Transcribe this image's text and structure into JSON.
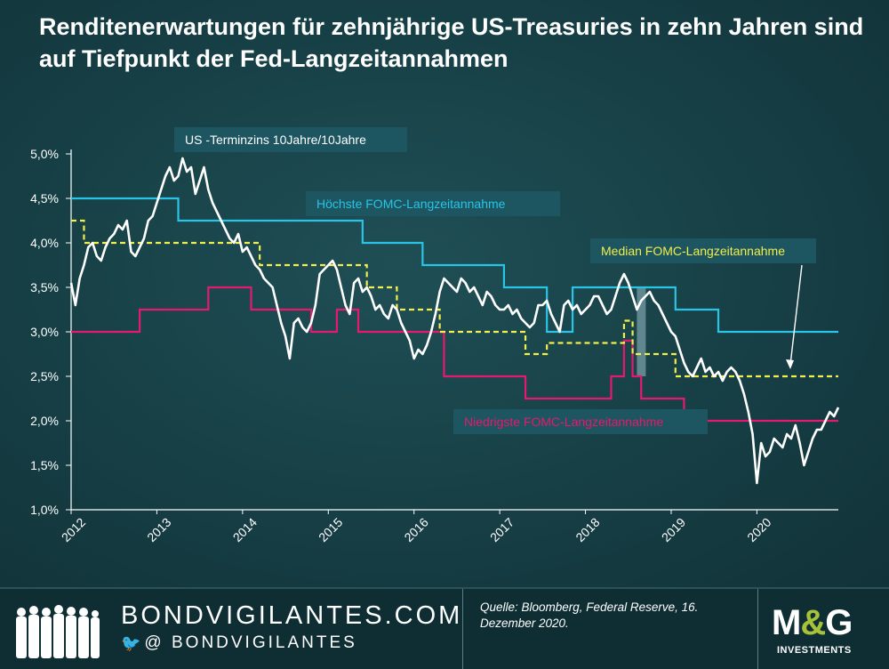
{
  "title": "Renditenerwartungen für zehnjährige US-Treasuries in zehn Jahren sind auf Tiefpunkt der Fed-Langzeitannahmen",
  "footer": {
    "site": "BONDVIGILANTES.COM",
    "social": "@ BONDVIGILANTES",
    "source": "Quelle: Bloomberg, Federal Reserve, 16. Dezember 2020.",
    "logo_main": "M&G",
    "logo_sub": "INVESTMENTS"
  },
  "colors": {
    "forward": "#ffffff",
    "highest": "#29c4e6",
    "median": "#f2ee4a",
    "lowest": "#e5196e",
    "label_box": "#1d5560",
    "accent": "#a6c23a"
  },
  "chart_data": {
    "type": "line",
    "ylim": [
      1.0,
      5.0
    ],
    "xlim": [
      2012.0,
      2020.95
    ],
    "y_ticks": [
      "1,0%",
      "1,5%",
      "2,0%",
      "2,5%",
      "3,0%",
      "3,5%",
      "4,0%",
      "4,5%",
      "5,0%"
    ],
    "y_tick_values": [
      1.0,
      1.5,
      2.0,
      2.5,
      3.0,
      3.5,
      4.0,
      4.5,
      5.0
    ],
    "x_ticks": [
      "2012",
      "2013",
      "2014",
      "2015",
      "2016",
      "2017",
      "2018",
      "2019",
      "2020"
    ],
    "x_tick_values": [
      2012,
      2013,
      2014,
      2015,
      2016,
      2017,
      2018,
      2019,
      2020
    ],
    "annotations": [
      {
        "text": "US -Terminzins 10Jahre/10Jahre",
        "series": "forward"
      },
      {
        "text": "Höchste FOMC-Langzeitannahme",
        "series": "highest"
      },
      {
        "text": "Median FOMC-Langzeitannahme",
        "series": "median"
      },
      {
        "text": "Niedrigste FOMC-Langzeitannahme",
        "series": "lowest"
      }
    ],
    "series": [
      {
        "name": "US -Terminzins 10Jahre/10Jahre",
        "key": "forward",
        "style": "solid",
        "x": [
          2012.0,
          2012.05,
          2012.1,
          2012.15,
          2012.2,
          2012.25,
          2012.3,
          2012.35,
          2012.4,
          2012.45,
          2012.5,
          2012.55,
          2012.6,
          2012.65,
          2012.7,
          2012.75,
          2012.8,
          2012.85,
          2012.9,
          2012.95,
          2013.0,
          2013.05,
          2013.1,
          2013.15,
          2013.2,
          2013.25,
          2013.3,
          2013.35,
          2013.4,
          2013.45,
          2013.5,
          2013.55,
          2013.6,
          2013.65,
          2013.7,
          2013.75,
          2013.8,
          2013.85,
          2013.9,
          2013.95,
          2014.0,
          2014.05,
          2014.1,
          2014.15,
          2014.2,
          2014.25,
          2014.3,
          2014.35,
          2014.4,
          2014.45,
          2014.5,
          2014.55,
          2014.6,
          2014.65,
          2014.7,
          2014.75,
          2014.8,
          2014.85,
          2014.9,
          2014.95,
          2015.0,
          2015.05,
          2015.1,
          2015.15,
          2015.2,
          2015.25,
          2015.3,
          2015.35,
          2015.4,
          2015.45,
          2015.5,
          2015.55,
          2015.6,
          2015.65,
          2015.7,
          2015.75,
          2015.8,
          2015.85,
          2015.9,
          2015.95,
          2016.0,
          2016.05,
          2016.1,
          2016.15,
          2016.2,
          2016.25,
          2016.3,
          2016.35,
          2016.4,
          2016.45,
          2016.5,
          2016.55,
          2016.6,
          2016.65,
          2016.7,
          2016.75,
          2016.8,
          2016.85,
          2016.9,
          2016.95,
          2017.0,
          2017.05,
          2017.1,
          2017.15,
          2017.2,
          2017.25,
          2017.3,
          2017.35,
          2017.4,
          2017.45,
          2017.5,
          2017.55,
          2017.6,
          2017.65,
          2017.7,
          2017.75,
          2017.8,
          2017.85,
          2017.9,
          2017.95,
          2018.0,
          2018.05,
          2018.1,
          2018.15,
          2018.2,
          2018.25,
          2018.3,
          2018.35,
          2018.4,
          2018.45,
          2018.5,
          2018.55,
          2018.6,
          2018.65,
          2018.7,
          2018.75,
          2018.8,
          2018.85,
          2018.9,
          2018.95,
          2019.0,
          2019.05,
          2019.1,
          2019.15,
          2019.2,
          2019.25,
          2019.3,
          2019.35,
          2019.4,
          2019.45,
          2019.5,
          2019.55,
          2019.6,
          2019.65,
          2019.7,
          2019.75,
          2019.8,
          2019.85,
          2019.9,
          2019.95,
          2020.0,
          2020.05,
          2020.1,
          2020.15,
          2020.2,
          2020.25,
          2020.3,
          2020.35,
          2020.4,
          2020.45,
          2020.5,
          2020.55,
          2020.6,
          2020.65,
          2020.7,
          2020.75,
          2020.8,
          2020.85,
          2020.9,
          2020.95
        ],
        "y": [
          3.55,
          3.3,
          3.6,
          3.75,
          3.95,
          4.0,
          3.85,
          3.8,
          3.95,
          4.05,
          4.1,
          4.2,
          4.15,
          4.25,
          3.9,
          3.85,
          3.95,
          4.05,
          4.25,
          4.3,
          4.45,
          4.6,
          4.75,
          4.85,
          4.7,
          4.75,
          4.95,
          4.8,
          4.85,
          4.55,
          4.7,
          4.85,
          4.6,
          4.45,
          4.35,
          4.25,
          4.15,
          4.05,
          4.0,
          4.1,
          3.9,
          3.95,
          3.85,
          3.75,
          3.7,
          3.6,
          3.55,
          3.5,
          3.3,
          3.1,
          2.95,
          2.7,
          3.1,
          3.15,
          3.05,
          3.0,
          3.1,
          3.3,
          3.65,
          3.7,
          3.75,
          3.8,
          3.7,
          3.5,
          3.3,
          3.2,
          3.55,
          3.6,
          3.45,
          3.5,
          3.4,
          3.25,
          3.3,
          3.2,
          3.15,
          3.3,
          3.25,
          3.1,
          3.0,
          2.9,
          2.7,
          2.8,
          2.75,
          2.85,
          3.0,
          3.2,
          3.45,
          3.6,
          3.55,
          3.5,
          3.45,
          3.6,
          3.55,
          3.45,
          3.5,
          3.4,
          3.3,
          3.45,
          3.4,
          3.3,
          3.25,
          3.25,
          3.3,
          3.2,
          3.25,
          3.15,
          3.1,
          3.05,
          3.1,
          3.3,
          3.3,
          3.35,
          3.2,
          3.1,
          3.0,
          3.3,
          3.35,
          3.25,
          3.3,
          3.2,
          3.25,
          3.3,
          3.4,
          3.4,
          3.3,
          3.2,
          3.25,
          3.4,
          3.55,
          3.65,
          3.55,
          3.4,
          3.25,
          3.35,
          3.4,
          3.45,
          3.35,
          3.3,
          3.2,
          3.1,
          3.0,
          2.95,
          2.8,
          2.65,
          2.55,
          2.5,
          2.6,
          2.7,
          2.55,
          2.6,
          2.5,
          2.55,
          2.45,
          2.55,
          2.6,
          2.55,
          2.45,
          2.3,
          2.1,
          1.85,
          1.3,
          1.75,
          1.6,
          1.65,
          1.8,
          1.75,
          1.7,
          1.85,
          1.8,
          1.95,
          1.75,
          1.5,
          1.65,
          1.8,
          1.9,
          1.9,
          2.0,
          2.1,
          2.05,
          2.15
        ]
      },
      {
        "name": "Höchste FOMC-Langzeitannahme",
        "key": "highest",
        "style": "step",
        "x": [
          2012.0,
          2013.25,
          2014.3,
          2015.4,
          2016.1,
          2017.05,
          2017.55,
          2017.85,
          2018.55,
          2019.05,
          2019.55,
          2020.95
        ],
        "y": [
          4.5,
          4.25,
          4.25,
          4.0,
          3.75,
          3.5,
          3.0,
          3.5,
          3.5,
          3.25,
          3.0,
          3.0
        ]
      },
      {
        "name": "Median FOMC-Langzeitannahme",
        "key": "median",
        "style": "step-dashed",
        "x": [
          2012.0,
          2012.15,
          2013.0,
          2014.0,
          2014.2,
          2015.0,
          2015.45,
          2015.8,
          2016.3,
          2017.3,
          2017.55,
          2018.3,
          2018.45,
          2018.55,
          2019.05,
          2020.95
        ],
        "y": [
          4.25,
          4.0,
          4.0,
          4.0,
          3.75,
          3.75,
          3.5,
          3.25,
          3.0,
          2.75,
          2.875,
          2.875,
          3.125,
          2.75,
          2.5,
          2.5
        ]
      },
      {
        "name": "Niedrigste FOMC-Langzeitannahme",
        "key": "lowest",
        "style": "step",
        "x": [
          2012.0,
          2012.8,
          2013.6,
          2014.1,
          2014.8,
          2015.1,
          2015.35,
          2016.35,
          2017.3,
          2018.3,
          2018.45,
          2018.55,
          2018.65,
          2019.15,
          2020.95
        ],
        "y": [
          3.0,
          3.25,
          3.5,
          3.25,
          3.0,
          3.25,
          3.0,
          2.5,
          2.25,
          2.5,
          2.9,
          2.5,
          2.25,
          2.0,
          2.0
        ]
      }
    ]
  }
}
